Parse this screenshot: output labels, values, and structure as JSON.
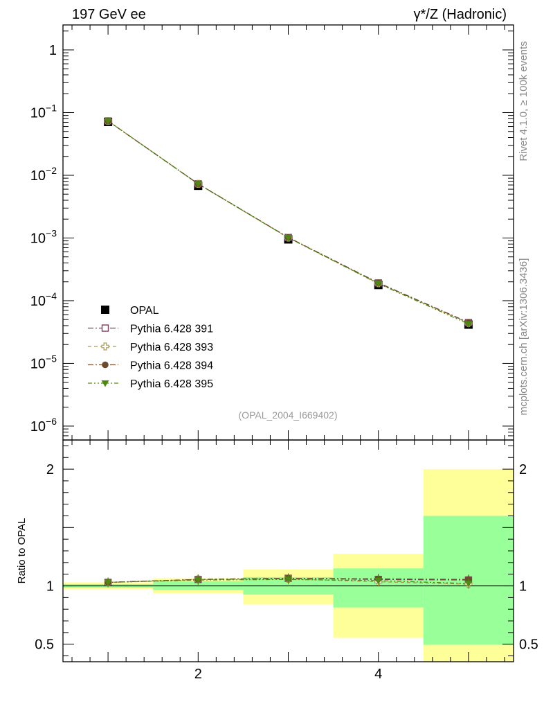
{
  "header": {
    "left_title": "197 GeV ee",
    "right_title": "γ*/Z (Hadronic)"
  },
  "side_labels": {
    "rivet": "Rivet 4.1.0, ≥ 100k events",
    "mcplots": "mcplots.cern.ch [arXiv:1306.3436]"
  },
  "analysis_id": "(OPAL_2004_I669402)",
  "colors": {
    "data": "#000000",
    "p391": "#7b3f5e",
    "p393": "#a89a55",
    "p394": "#6b4a2e",
    "p395": "#4f8a10",
    "band_inner": "#99ff99",
    "band_outer": "#ffff99"
  },
  "chart_data": [
    {
      "type": "scatter",
      "panel": "main",
      "yscale": "log",
      "xlim": [
        0.5,
        5.5
      ],
      "ylim": [
        6e-07,
        2.5
      ],
      "ytick_labels": [
        {
          "value": 1,
          "mant": "1",
          "exp": ""
        },
        {
          "value": 0.1,
          "mant": "10",
          "exp": "−1"
        },
        {
          "value": 0.01,
          "mant": "10",
          "exp": "−2"
        },
        {
          "value": 0.001,
          "mant": "10",
          "exp": "−3"
        },
        {
          "value": 0.0001,
          "mant": "10",
          "exp": "−4"
        },
        {
          "value": 1e-05,
          "mant": "10",
          "exp": "−5"
        },
        {
          "value": 1e-06,
          "mant": "10",
          "exp": "−6"
        }
      ],
      "legend_position": "lower-left",
      "series": [
        {
          "name": "OPAL",
          "marker": "square-filled",
          "x": [
            1,
            2,
            3,
            4,
            5
          ],
          "values": [
            0.071,
            0.0068,
            0.00095,
            0.000178,
            4.15e-05
          ]
        },
        {
          "name": "Pythia 6.428 391",
          "marker": "square-open",
          "linestyle": "dashdot",
          "x": [
            1,
            2,
            3,
            4,
            5
          ],
          "values": [
            0.0735,
            0.0073,
            0.00102,
            0.000192,
            4.48e-05
          ]
        },
        {
          "name": "Pythia 6.428 393",
          "marker": "cross-open",
          "linestyle": "dash",
          "x": [
            1,
            2,
            3,
            4,
            5
          ],
          "values": [
            0.0735,
            0.0073,
            0.00101,
            0.000189,
            4.4e-05
          ]
        },
        {
          "name": "Pythia 6.428 394",
          "marker": "circle-filled",
          "linestyle": "dashdot",
          "x": [
            1,
            2,
            3,
            4,
            5
          ],
          "values": [
            0.0735,
            0.0073,
            0.00102,
            0.000193,
            4.5e-05
          ]
        },
        {
          "name": "Pythia 6.428 395",
          "marker": "triangle-down-filled",
          "linestyle": "dashdotdot",
          "x": [
            1,
            2,
            3,
            4,
            5
          ],
          "values": [
            0.0735,
            0.0073,
            0.00101,
            0.000187,
            4.25e-05
          ]
        }
      ]
    },
    {
      "type": "scatter",
      "panel": "ratio",
      "ylabel": "Ratio to OPAL",
      "xlim": [
        0.5,
        5.5
      ],
      "ylim": [
        0.35,
        2.25
      ],
      "ytick_labels": [
        {
          "value": 0.5,
          "label": "0.5"
        },
        {
          "value": 1,
          "label": "1"
        },
        {
          "value": 2,
          "label": "2"
        }
      ],
      "xtick_labels": [
        {
          "value": 2,
          "label": "2"
        },
        {
          "value": 4,
          "label": "4"
        }
      ],
      "bands": [
        {
          "x_low": 0.5,
          "x_high": 1.5,
          "inner": [
            0.985,
            1.015
          ],
          "outer": [
            0.97,
            1.03
          ]
        },
        {
          "x_low": 1.5,
          "x_high": 2.5,
          "inner": [
            0.965,
            1.04
          ],
          "outer": [
            0.935,
            1.065
          ]
        },
        {
          "x_low": 2.5,
          "x_high": 3.5,
          "inner": [
            0.925,
            1.075
          ],
          "outer": [
            0.84,
            1.14
          ]
        },
        {
          "x_low": 3.5,
          "x_high": 4.5,
          "inner": [
            0.815,
            1.15
          ],
          "outer": [
            0.555,
            1.275
          ]
        },
        {
          "x_low": 4.5,
          "x_high": 5.5,
          "inner": [
            0.495,
            1.6
          ],
          "outer": [
            0.3,
            2.0
          ]
        }
      ],
      "series": [
        {
          "name": "Pythia 6.428 391",
          "x": [
            1,
            2,
            3,
            4,
            5
          ],
          "values": [
            1.03,
            1.055,
            1.065,
            1.055,
            1.05
          ]
        },
        {
          "name": "Pythia 6.428 393",
          "x": [
            1,
            2,
            3,
            4,
            5
          ],
          "values": [
            1.03,
            1.055,
            1.06,
            1.035,
            1.015
          ]
        },
        {
          "name": "Pythia 6.428 394",
          "x": [
            1,
            2,
            3,
            4,
            5
          ],
          "values": [
            1.03,
            1.055,
            1.065,
            1.06,
            1.055
          ]
        },
        {
          "name": "Pythia 6.428 395",
          "x": [
            1,
            2,
            3,
            4,
            5
          ],
          "values": [
            1.03,
            1.05,
            1.055,
            1.045,
            1.02
          ]
        }
      ]
    }
  ]
}
